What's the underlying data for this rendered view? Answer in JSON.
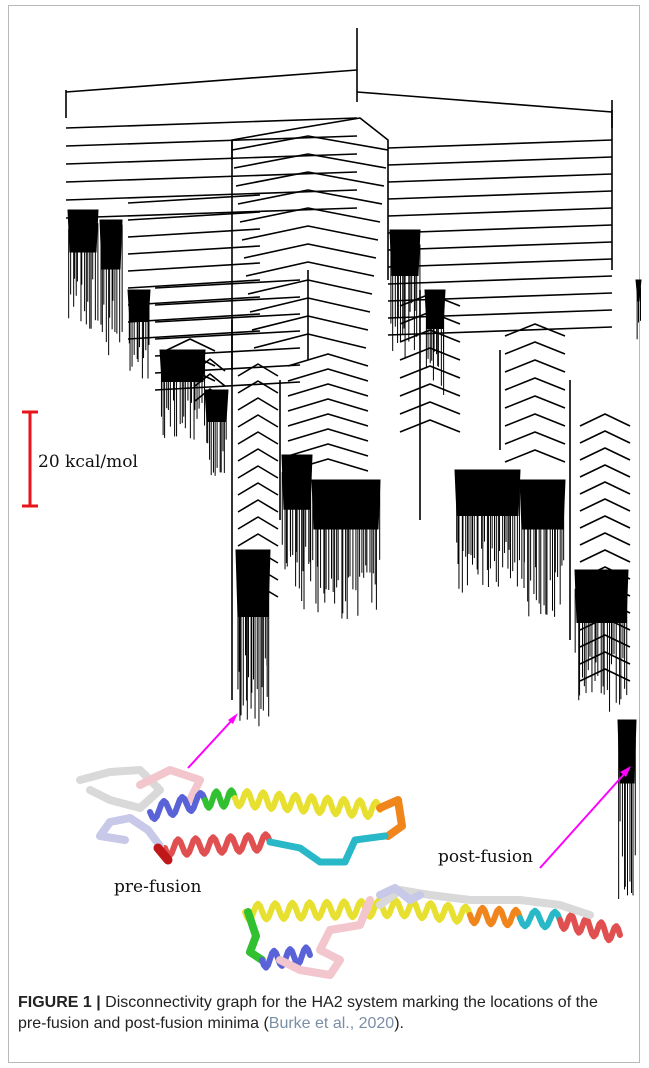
{
  "figure": {
    "scale_bar": {
      "label": "20 kcal/mol",
      "color": "#e8141c"
    },
    "labels": {
      "pre_fusion": "pre-fusion",
      "post_fusion": "post-fusion"
    },
    "arrow_color": "#ff00ff",
    "caption": {
      "number": "FIGURE 1 |",
      "text": " Disconnectivity graph for the HA2 system marking the locations of the pre-fusion and post-fusion minima (",
      "reference": "Burke et al., 2020",
      "end": ")."
    },
    "helix_colors": [
      "#d9d9d9",
      "#f2c6cc",
      "#5a62d8",
      "#30c030",
      "#e8e030",
      "#f0851c",
      "#e05050",
      "#28b8c8",
      "#c8c8e8"
    ]
  }
}
